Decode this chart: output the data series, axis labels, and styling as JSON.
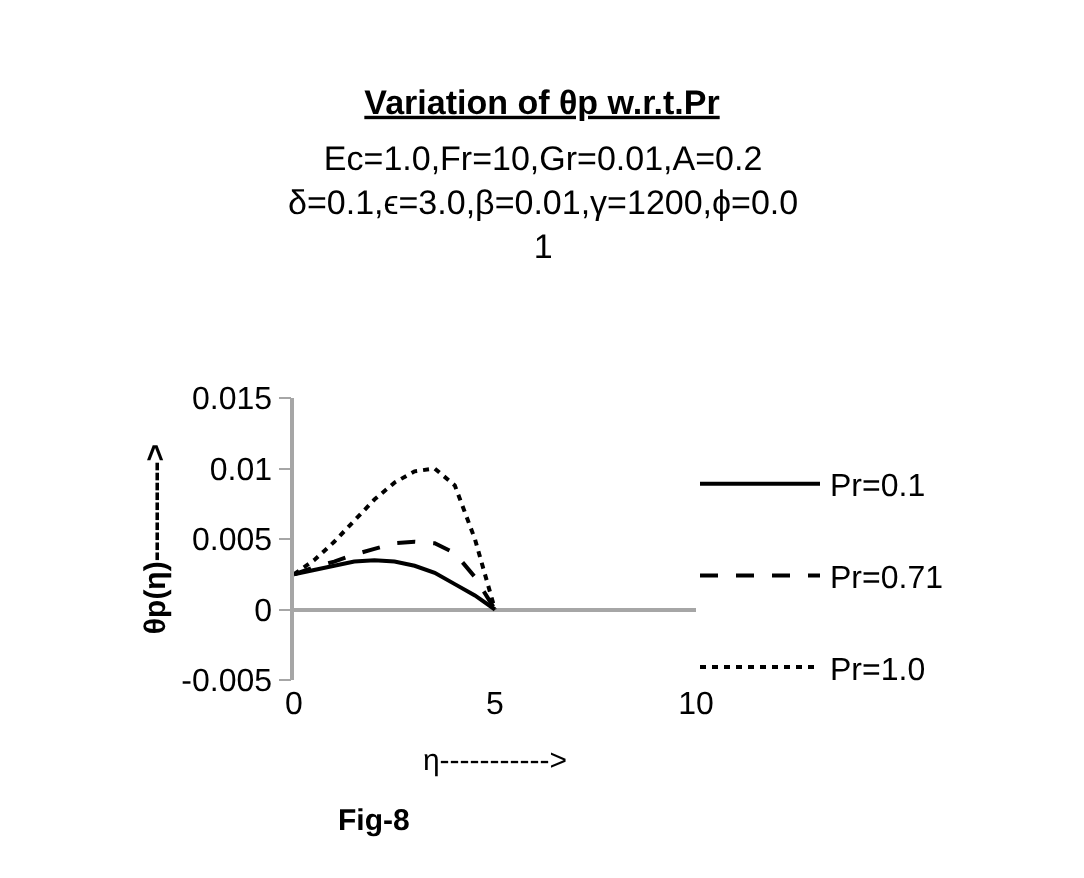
{
  "chart_data": {
    "type": "line",
    "title": "Variation of θp w.r.t.Pr",
    "subtitle": "Ec=1.0,Fr=10,Gr=0.01,A=0.2\nδ=0.1,ϵ=3.0,β=0.01,γ=1200,ϕ=0.0\n1",
    "xlabel": "η----------->",
    "ylabel": "θp(η)---------->",
    "annotations": [
      "Fig-8"
    ],
    "x": [
      0,
      0.5,
      1,
      1.5,
      2,
      2.5,
      3,
      3.5,
      4,
      4.5,
      5
    ],
    "series": [
      {
        "name": "Pr=0.1",
        "color": "#000000",
        "line_style": "solid",
        "values": [
          0.0025,
          0.0028,
          0.0031,
          0.0034,
          0.0035,
          0.0034,
          0.0031,
          0.0026,
          0.0018,
          0.001,
          0
        ]
      },
      {
        "name": "Pr=0.71",
        "color": "#000000",
        "line_style": "dashed",
        "values": [
          0.0025,
          0.003,
          0.0034,
          0.0039,
          0.0043,
          0.0047,
          0.0048,
          0.0047,
          0.004,
          0.0023,
          0
        ]
      },
      {
        "name": "Pr=1.0",
        "color": "#000000",
        "line_style": "dotted",
        "values": [
          0.0025,
          0.0035,
          0.0048,
          0.0063,
          0.0078,
          0.009,
          0.0098,
          0.01,
          0.0088,
          0.005,
          0
        ]
      }
    ],
    "xlim": [
      0,
      10
    ],
    "xticks": [
      0,
      5,
      10
    ],
    "ylim": [
      -0.005,
      0.015
    ],
    "yticks": [
      -0.005,
      0,
      0.005,
      0.01,
      0.015
    ],
    "legend": "right",
    "marker": "none"
  }
}
